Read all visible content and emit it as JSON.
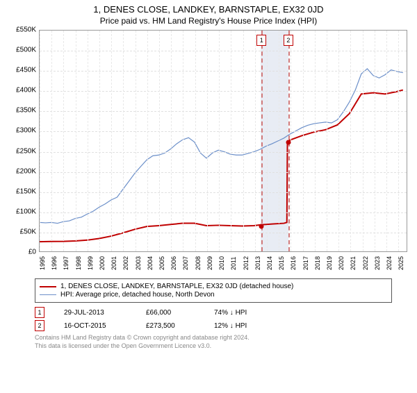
{
  "title": "1, DENES CLOSE, LANDKEY, BARNSTAPLE, EX32 0JD",
  "subtitle": "Price paid vs. HM Land Registry's House Price Index (HPI)",
  "chart": {
    "type": "line",
    "background_color": "#ffffff",
    "grid_color": "#e0e0e0",
    "grid_vcolor": "#e8e8e8",
    "border_color": "#999999",
    "xlim": [
      1995,
      2025.8
    ],
    "ylim": [
      0,
      550000
    ],
    "ytick_step": 50000,
    "yticks": [
      "£0",
      "£50K",
      "£100K",
      "£150K",
      "£200K",
      "£250K",
      "£300K",
      "£350K",
      "£400K",
      "£450K",
      "£500K",
      "£550K"
    ],
    "xticks": [
      1995,
      1996,
      1997,
      1998,
      1999,
      2000,
      2001,
      2002,
      2003,
      2004,
      2005,
      2006,
      2007,
      2008,
      2009,
      2010,
      2011,
      2012,
      2013,
      2014,
      2015,
      2016,
      2017,
      2018,
      2019,
      2020,
      2021,
      2022,
      2023,
      2024,
      2025
    ],
    "band": {
      "start": 2013.5,
      "end": 2015.8,
      "color": "#e8ecf4"
    },
    "markers": [
      {
        "id": "1",
        "x": 2013.55
      },
      {
        "id": "2",
        "x": 2015.8
      }
    ],
    "marker_line_color": "#d27a7a",
    "marker_box_border": "#c00000",
    "series": [
      {
        "name": "price_paid",
        "label": "1, DENES CLOSE, LANDKEY, BARNSTAPLE, EX32 0JD (detached house)",
        "color": "#c00000",
        "width": 2,
        "points": [
          [
            1995,
            24000
          ],
          [
            1996,
            24500
          ],
          [
            1997,
            25000
          ],
          [
            1998,
            26000
          ],
          [
            1999,
            28000
          ],
          [
            2000,
            32000
          ],
          [
            2001,
            38000
          ],
          [
            2002,
            46000
          ],
          [
            2003,
            55000
          ],
          [
            2004,
            62000
          ],
          [
            2005,
            64000
          ],
          [
            2006,
            67000
          ],
          [
            2007,
            70000
          ],
          [
            2008,
            70000
          ],
          [
            2009,
            64000
          ],
          [
            2010,
            65000
          ],
          [
            2011,
            64000
          ],
          [
            2012,
            63000
          ],
          [
            2013,
            64000
          ],
          [
            2013.5,
            66000
          ],
          [
            2014.5,
            68000
          ],
          [
            2015.5,
            70000
          ],
          [
            2015.75,
            72000
          ],
          [
            2015.8,
            273500
          ],
          [
            2016,
            277000
          ],
          [
            2017,
            288000
          ],
          [
            2018,
            297000
          ],
          [
            2019,
            303000
          ],
          [
            2020,
            315000
          ],
          [
            2021,
            343000
          ],
          [
            2022,
            392000
          ],
          [
            2023,
            395000
          ],
          [
            2024,
            392000
          ],
          [
            2025,
            398000
          ],
          [
            2025.5,
            402000
          ]
        ],
        "dots": [
          {
            "x": 2013.55,
            "y": 66000
          },
          {
            "x": 2015.8,
            "y": 273500
          }
        ]
      },
      {
        "name": "hpi",
        "label": "HPI: Average price, detached house, North Devon",
        "color": "#6b8fc9",
        "width": 1.2,
        "points": [
          [
            1995,
            72000
          ],
          [
            1995.5,
            71000
          ],
          [
            1996,
            72000
          ],
          [
            1996.5,
            70000
          ],
          [
            1997,
            74000
          ],
          [
            1997.5,
            76000
          ],
          [
            1998,
            82000
          ],
          [
            1998.5,
            85000
          ],
          [
            1999,
            93000
          ],
          [
            1999.5,
            100000
          ],
          [
            2000,
            110000
          ],
          [
            2000.5,
            118000
          ],
          [
            2001,
            128000
          ],
          [
            2001.5,
            135000
          ],
          [
            2002,
            155000
          ],
          [
            2002.5,
            175000
          ],
          [
            2003,
            195000
          ],
          [
            2003.5,
            212000
          ],
          [
            2004,
            228000
          ],
          [
            2004.5,
            238000
          ],
          [
            2005,
            240000
          ],
          [
            2005.5,
            245000
          ],
          [
            2006,
            255000
          ],
          [
            2006.5,
            268000
          ],
          [
            2007,
            278000
          ],
          [
            2007.5,
            283000
          ],
          [
            2008,
            272000
          ],
          [
            2008.5,
            245000
          ],
          [
            2009,
            232000
          ],
          [
            2009.5,
            245000
          ],
          [
            2010,
            252000
          ],
          [
            2010.5,
            248000
          ],
          [
            2011,
            242000
          ],
          [
            2011.5,
            240000
          ],
          [
            2012,
            240000
          ],
          [
            2012.5,
            244000
          ],
          [
            2013,
            248000
          ],
          [
            2013.5,
            254000
          ],
          [
            2014,
            262000
          ],
          [
            2014.5,
            268000
          ],
          [
            2015,
            275000
          ],
          [
            2015.5,
            282000
          ],
          [
            2016,
            292000
          ],
          [
            2016.5,
            300000
          ],
          [
            2017,
            308000
          ],
          [
            2017.5,
            314000
          ],
          [
            2018,
            318000
          ],
          [
            2018.5,
            320000
          ],
          [
            2019,
            322000
          ],
          [
            2019.5,
            320000
          ],
          [
            2020,
            328000
          ],
          [
            2020.5,
            348000
          ],
          [
            2021,
            372000
          ],
          [
            2021.5,
            402000
          ],
          [
            2022,
            442000
          ],
          [
            2022.5,
            455000
          ],
          [
            2023,
            438000
          ],
          [
            2023.5,
            432000
          ],
          [
            2024,
            440000
          ],
          [
            2024.5,
            452000
          ],
          [
            2025,
            448000
          ],
          [
            2025.5,
            445000
          ]
        ]
      }
    ]
  },
  "legend": {
    "border_color": "#555555",
    "items": [
      {
        "color": "#c00000",
        "width": 2,
        "text": "1, DENES CLOSE, LANDKEY, BARNSTAPLE, EX32 0JD (detached house)"
      },
      {
        "color": "#6b8fc9",
        "width": 1,
        "text": "HPI: Average price, detached house, North Devon"
      }
    ]
  },
  "transactions": [
    {
      "id": "1",
      "date": "29-JUL-2013",
      "price": "£66,000",
      "vs": "74% ↓ HPI"
    },
    {
      "id": "2",
      "date": "16-OCT-2015",
      "price": "£273,500",
      "vs": "12% ↓ HPI"
    }
  ],
  "footer": {
    "line1": "Contains HM Land Registry data © Crown copyright and database right 2024.",
    "line2": "This data is licensed under the Open Government Licence v3.0."
  }
}
